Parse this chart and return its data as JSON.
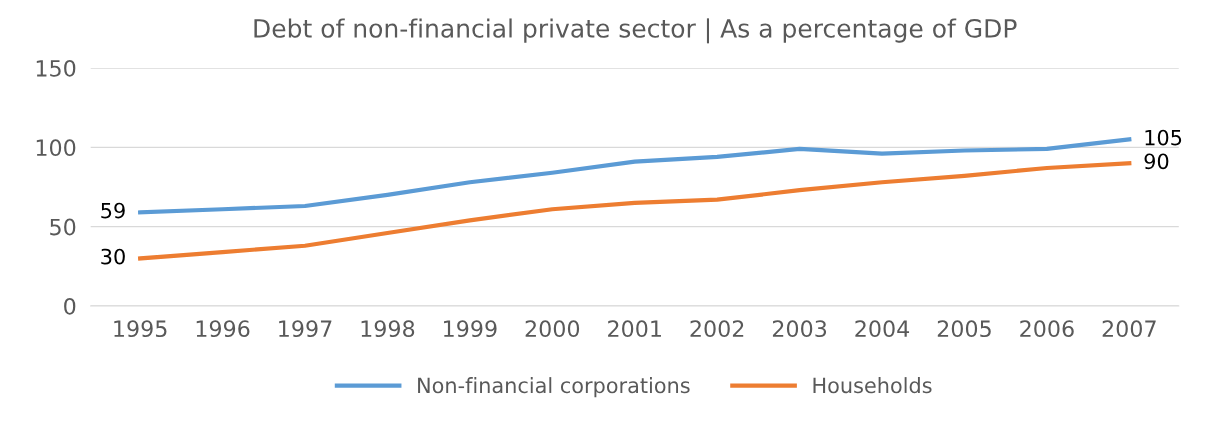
{
  "chart_data": {
    "type": "line",
    "title": "Debt of non-financial private sector | As a percentage of GDP",
    "categories": [
      "1995",
      "1996",
      "1997",
      "1998",
      "1999",
      "2000",
      "2001",
      "2002",
      "2003",
      "2004",
      "2005",
      "2006",
      "2007"
    ],
    "series": [
      {
        "name": "Non-financial corporations",
        "color": "#5b9bd5",
        "values": [
          59,
          61,
          63,
          70,
          78,
          84,
          91,
          94,
          99,
          96,
          98,
          99,
          105
        ],
        "value_labels": [
          "59",
          null,
          null,
          null,
          null,
          null,
          null,
          null,
          null,
          null,
          null,
          null,
          "105"
        ]
      },
      {
        "name": "Households",
        "color": "#ed7d31",
        "values": [
          30,
          34,
          38,
          46,
          54,
          61,
          65,
          67,
          73,
          78,
          82,
          87,
          90
        ],
        "value_labels": [
          "30",
          null,
          null,
          null,
          null,
          null,
          null,
          null,
          null,
          null,
          null,
          null,
          "90"
        ]
      }
    ],
    "ylim": [
      0,
      150
    ],
    "yticks": [
      0,
      50,
      100,
      150
    ],
    "grid": "y",
    "legend": "bottom",
    "marker": "none",
    "line_style": "solid"
  }
}
